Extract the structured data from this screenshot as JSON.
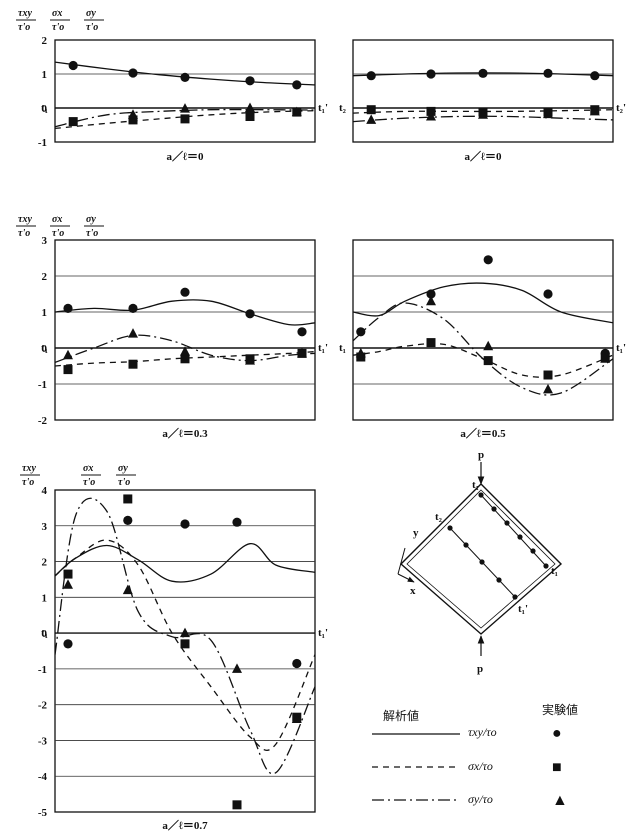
{
  "header_labels": {
    "txy_num": "τxy",
    "txy_den": "τ'o",
    "sx_num": "σx",
    "sx_den": "τ'o",
    "sy_num": "σy",
    "sy_den": "τ'o"
  },
  "line_marks": {
    "t1": "t₁",
    "t1p": "t₁'",
    "t2": "t₂",
    "t2p": "t₂'"
  },
  "diagram": {
    "load_top": "p",
    "load_bottom": "p",
    "axis_x": "x",
    "axis_y": "y",
    "label_t1_top": "t₁",
    "label_t2": "t₂",
    "label_t1_right": "t₁",
    "label_t1p": "t₁'"
  },
  "legend": {
    "header_solid": "解析値",
    "header_markers": "実験値",
    "txy_label": "τxy/τo",
    "sx_label": "σx/τo",
    "sy_label": "σy/τo",
    "circle_symbol": "●",
    "square_symbol": "■",
    "triangle_symbol": "▲"
  },
  "chart_data": [
    {
      "type": "line",
      "caption": "a／ℓ＝0",
      "position": "top-left",
      "xlim": [
        0,
        1
      ],
      "ylim": [
        -1,
        2
      ],
      "yticks": [
        "2",
        "1",
        "0",
        "-1"
      ],
      "series": [
        {
          "name": "τxy/τo 解析値",
          "x": [
            0,
            0.2,
            0.4,
            0.6,
            0.8,
            1.0
          ],
          "values": [
            1.35,
            1.15,
            0.98,
            0.85,
            0.75,
            0.68
          ]
        },
        {
          "name": "σx/τo 解析値",
          "x": [
            0,
            0.2,
            0.4,
            0.6,
            0.8,
            1.0
          ],
          "values": [
            -0.6,
            -0.45,
            -0.32,
            -0.2,
            -0.12,
            -0.08
          ]
        },
        {
          "name": "σy/τo 解析値",
          "x": [
            0,
            0.2,
            0.4,
            0.6,
            0.8,
            1.0
          ],
          "values": [
            -0.55,
            -0.2,
            -0.1,
            -0.05,
            -0.05,
            -0.06
          ]
        }
      ],
      "markers": {
        "circle": [
          [
            0.07,
            1.25
          ],
          [
            0.3,
            1.03
          ],
          [
            0.5,
            0.9
          ],
          [
            0.75,
            0.8
          ],
          [
            0.93,
            0.68
          ]
        ],
        "square": [
          [
            0.07,
            -0.4
          ],
          [
            0.3,
            -0.35
          ],
          [
            0.5,
            -0.32
          ],
          [
            0.75,
            -0.25
          ],
          [
            0.93,
            -0.12
          ]
        ],
        "triangle": [
          [
            0.3,
            -0.2
          ],
          [
            0.5,
            -0.02
          ],
          [
            0.75,
            0.0
          ],
          [
            0.93,
            -0.12
          ]
        ]
      }
    },
    {
      "type": "line",
      "caption": "a／ℓ＝0",
      "position": "top-right",
      "xlim": [
        0,
        1
      ],
      "ylim": [
        -1,
        2
      ],
      "yticks": [],
      "series": [
        {
          "name": "τxy/τo 解析値",
          "x": [
            0,
            0.2,
            0.4,
            0.6,
            0.8,
            1.0
          ],
          "values": [
            0.95,
            1.0,
            1.03,
            1.03,
            1.0,
            0.95
          ]
        },
        {
          "name": "σx/τo 解析値",
          "x": [
            0,
            0.2,
            0.4,
            0.6,
            0.8,
            1.0
          ],
          "values": [
            -0.15,
            -0.1,
            -0.1,
            -0.1,
            -0.08,
            -0.05
          ]
        },
        {
          "name": "σy/τo 解析値",
          "x": [
            0,
            0.2,
            0.4,
            0.6,
            0.8,
            1.0
          ],
          "values": [
            -0.4,
            -0.3,
            -0.25,
            -0.25,
            -0.3,
            -0.35
          ]
        }
      ],
      "markers": {
        "circle": [
          [
            0.07,
            0.95
          ],
          [
            0.3,
            1.0
          ],
          [
            0.5,
            1.02
          ],
          [
            0.75,
            1.02
          ],
          [
            0.93,
            0.95
          ]
        ],
        "square": [
          [
            0.07,
            -0.05
          ],
          [
            0.3,
            -0.1
          ],
          [
            0.5,
            -0.12
          ],
          [
            0.75,
            -0.12
          ],
          [
            0.93,
            -0.05
          ]
        ],
        "triangle": [
          [
            0.07,
            -0.35
          ],
          [
            0.3,
            -0.25
          ],
          [
            0.5,
            -0.2
          ],
          [
            0.75,
            -0.18
          ],
          [
            0.93,
            -0.1
          ]
        ]
      }
    },
    {
      "type": "line",
      "caption": "a／ℓ＝0.3",
      "position": "middle-left",
      "xlim": [
        0,
        1
      ],
      "ylim": [
        -2,
        3
      ],
      "yticks": [
        "3",
        "2",
        "1",
        "0",
        "-1",
        "-2"
      ],
      "series": [
        {
          "name": "τxy/τo 解析値",
          "x": [
            0,
            0.15,
            0.3,
            0.45,
            0.6,
            0.75,
            0.9,
            1.0
          ],
          "values": [
            1.0,
            1.1,
            1.05,
            1.3,
            1.3,
            0.95,
            0.65,
            0.7
          ]
        },
        {
          "name": "σx/τo 解析値",
          "x": [
            0,
            0.15,
            0.3,
            0.45,
            0.6,
            0.75,
            0.9,
            1.0
          ],
          "values": [
            -0.5,
            -0.42,
            -0.38,
            -0.3,
            -0.25,
            -0.2,
            -0.15,
            -0.1
          ]
        },
        {
          "name": "σy/τo 解析値",
          "x": [
            0,
            0.15,
            0.3,
            0.45,
            0.6,
            0.75,
            0.9,
            1.0
          ],
          "values": [
            -0.4,
            0.0,
            0.35,
            0.2,
            -0.2,
            -0.35,
            -0.2,
            -0.15
          ]
        }
      ],
      "markers": {
        "circle": [
          [
            0.05,
            1.1
          ],
          [
            0.3,
            1.1
          ],
          [
            0.5,
            1.55
          ],
          [
            0.75,
            0.95
          ],
          [
            0.95,
            0.45
          ]
        ],
        "square": [
          [
            0.05,
            -0.6
          ],
          [
            0.3,
            -0.45
          ],
          [
            0.5,
            -0.3
          ],
          [
            0.75,
            -0.3
          ],
          [
            0.95,
            -0.15
          ]
        ],
        "triangle": [
          [
            0.05,
            -0.2
          ],
          [
            0.3,
            0.4
          ],
          [
            0.5,
            -0.1
          ],
          [
            0.75,
            -0.35
          ],
          [
            0.95,
            -0.15
          ]
        ]
      }
    },
    {
      "type": "line",
      "caption": "a／ℓ＝0.5",
      "position": "middle-right",
      "xlim": [
        0,
        1
      ],
      "ylim": [
        -2,
        3
      ],
      "yticks": [],
      "series": [
        {
          "name": "τxy/τo 解析値",
          "x": [
            0,
            0.1,
            0.2,
            0.35,
            0.5,
            0.65,
            0.8,
            1.0
          ],
          "values": [
            1.0,
            0.9,
            1.3,
            1.7,
            1.8,
            1.6,
            1.0,
            0.7
          ]
        },
        {
          "name": "σx/τo 解析値",
          "x": [
            0,
            0.1,
            0.2,
            0.35,
            0.5,
            0.65,
            0.8,
            1.0
          ],
          "values": [
            -0.2,
            -0.1,
            0.05,
            0.1,
            -0.3,
            -0.75,
            -0.75,
            -0.2
          ]
        },
        {
          "name": "σy/τo 解析値",
          "x": [
            0,
            0.1,
            0.2,
            0.35,
            0.5,
            0.65,
            0.8,
            1.0
          ],
          "values": [
            0.2,
            0.85,
            1.25,
            0.8,
            -0.3,
            -1.1,
            -1.25,
            -0.3
          ]
        }
      ],
      "markers": {
        "circle": [
          [
            0.03,
            0.45
          ],
          [
            0.3,
            1.5
          ],
          [
            0.52,
            2.45
          ],
          [
            0.75,
            1.5
          ],
          [
            0.97,
            -0.15
          ]
        ],
        "square": [
          [
            0.03,
            -0.25
          ],
          [
            0.3,
            0.15
          ],
          [
            0.52,
            -0.35
          ],
          [
            0.75,
            -0.75
          ],
          [
            0.97,
            -0.25
          ]
        ],
        "triangle": [
          [
            0.03,
            -0.15
          ],
          [
            0.3,
            1.3
          ],
          [
            0.52,
            0.05
          ],
          [
            0.75,
            -1.15
          ],
          [
            0.97,
            -0.3
          ]
        ]
      }
    },
    {
      "type": "line",
      "caption": "a／ℓ＝0.7",
      "position": "bottom-left",
      "xlim": [
        0,
        1
      ],
      "ylim": [
        -5,
        4
      ],
      "yticks": [
        "4",
        "3",
        "2",
        "1",
        "0",
        "-1",
        "-2",
        "-3",
        "-4",
        "-5"
      ],
      "series": [
        {
          "name": "τxy/τo 解析値",
          "x": [
            0,
            0.08,
            0.2,
            0.32,
            0.45,
            0.6,
            0.75,
            0.85,
            1.0
          ],
          "values": [
            1.6,
            2.1,
            2.45,
            2.05,
            1.45,
            1.65,
            2.5,
            1.9,
            1.7
          ]
        },
        {
          "name": "σx/τo 解析値",
          "x": [
            0,
            0.08,
            0.2,
            0.32,
            0.45,
            0.6,
            0.75,
            0.85,
            1.0
          ],
          "values": [
            1.6,
            2.1,
            2.6,
            1.9,
            0.0,
            -1.5,
            -2.9,
            -3.1,
            -0.6
          ]
        },
        {
          "name": "σy/τo 解析値",
          "x": [
            0,
            0.08,
            0.2,
            0.32,
            0.45,
            0.6,
            0.75,
            0.85,
            1.0
          ],
          "values": [
            -0.6,
            3.3,
            3.4,
            0.6,
            -0.1,
            -0.2,
            -2.7,
            -3.9,
            -1.5
          ]
        }
      ],
      "markers": {
        "circle": [
          [
            0.05,
            -0.3
          ],
          [
            0.28,
            3.15
          ],
          [
            0.5,
            3.05
          ],
          [
            0.7,
            3.1
          ],
          [
            0.93,
            -0.85
          ]
        ],
        "square": [
          [
            0.05,
            1.65
          ],
          [
            0.28,
            3.75
          ],
          [
            0.5,
            -0.3
          ],
          [
            0.7,
            -4.8
          ],
          [
            0.93,
            -2.35
          ]
        ],
        "triangle": [
          [
            0.05,
            1.35
          ],
          [
            0.28,
            1.2
          ],
          [
            0.5,
            0.0
          ],
          [
            0.7,
            -1.0
          ],
          [
            0.93,
            -2.4
          ]
        ]
      }
    }
  ]
}
